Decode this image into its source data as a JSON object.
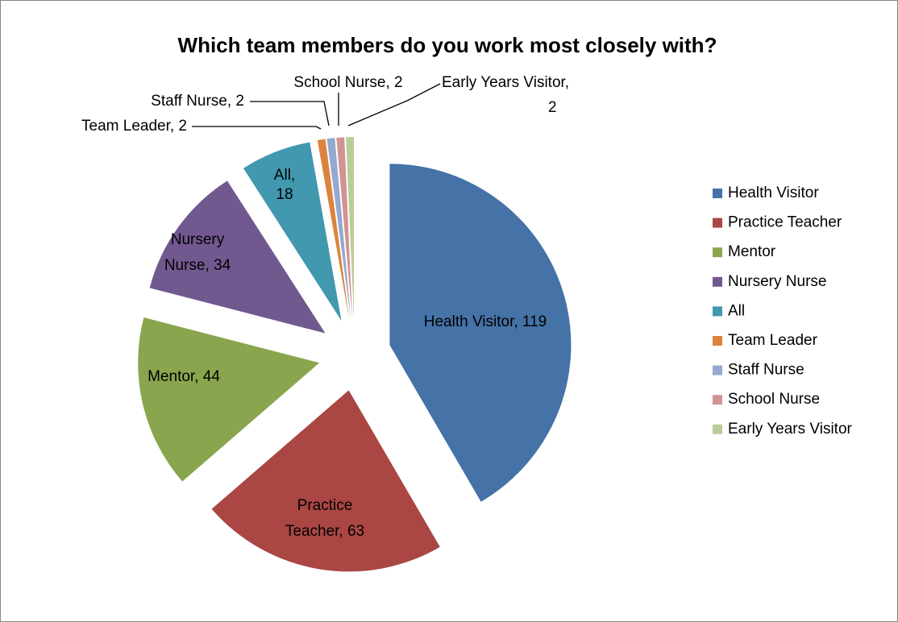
{
  "chart_data": {
    "type": "pie",
    "title": "Which team members do you work most closely with?",
    "categories": [
      "Health Visitor",
      "Practice Teacher",
      "Mentor",
      "Nursery Nurse",
      "All",
      "Team Leader",
      "Staff Nurse",
      "School Nurse",
      "Early Years Visitor"
    ],
    "values": [
      119,
      63,
      44,
      34,
      18,
      2,
      2,
      2,
      2
    ],
    "value_labels": [
      "Health Visitor, 119",
      "Practice Teacher, 63",
      "Mentor, 44",
      "Nursery Nurse, 34",
      "All, 18",
      "Team Leader, 2",
      "Staff Nurse, 2",
      "School Nurse, 2",
      "Early Years Visitor, 2"
    ],
    "colors": [
      "#4572a7",
      "#aa4643",
      "#89a54e",
      "#71588f",
      "#4198af",
      "#db843d",
      "#93a9cf",
      "#d19392",
      "#b9cd96"
    ],
    "legend": "right"
  }
}
